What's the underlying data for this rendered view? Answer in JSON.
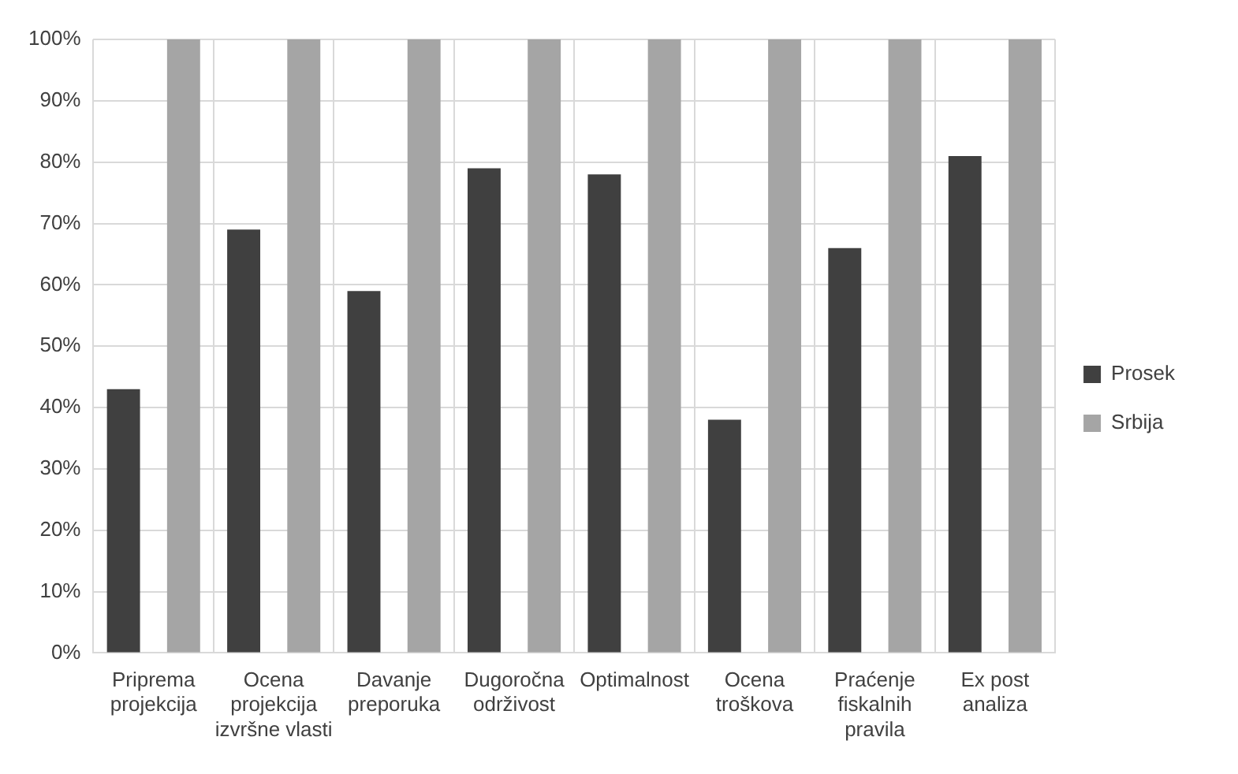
{
  "chart_data": {
    "type": "bar",
    "categories": [
      "Priprema projekcija",
      "Ocena projekcija izvršne vlasti",
      "Davanje preporuka",
      "Dugoročna održivost",
      "Optimalnost",
      "Ocena troškova",
      "Praćenje fiskalnih pravila",
      "Ex post analiza"
    ],
    "series": [
      {
        "name": "Prosek",
        "color": "#404040",
        "values": [
          43,
          69,
          59,
          79,
          78,
          38,
          66,
          81
        ]
      },
      {
        "name": "Srbija",
        "color": "#a5a5a5",
        "values": [
          100,
          100,
          100,
          100,
          100,
          100,
          100,
          100
        ]
      }
    ],
    "ylim": [
      0,
      100
    ],
    "yticks": [
      {
        "value": 0,
        "label": "0%"
      },
      {
        "value": 10,
        "label": "10%"
      },
      {
        "value": 20,
        "label": "20%"
      },
      {
        "value": 30,
        "label": "30%"
      },
      {
        "value": 40,
        "label": "40%"
      },
      {
        "value": 50,
        "label": "50%"
      },
      {
        "value": 60,
        "label": "60%"
      },
      {
        "value": 70,
        "label": "70%"
      },
      {
        "value": 80,
        "label": "80%"
      },
      {
        "value": 90,
        "label": "90%"
      },
      {
        "value": 100,
        "label": "100%"
      }
    ],
    "grid": true,
    "legend": "right"
  }
}
